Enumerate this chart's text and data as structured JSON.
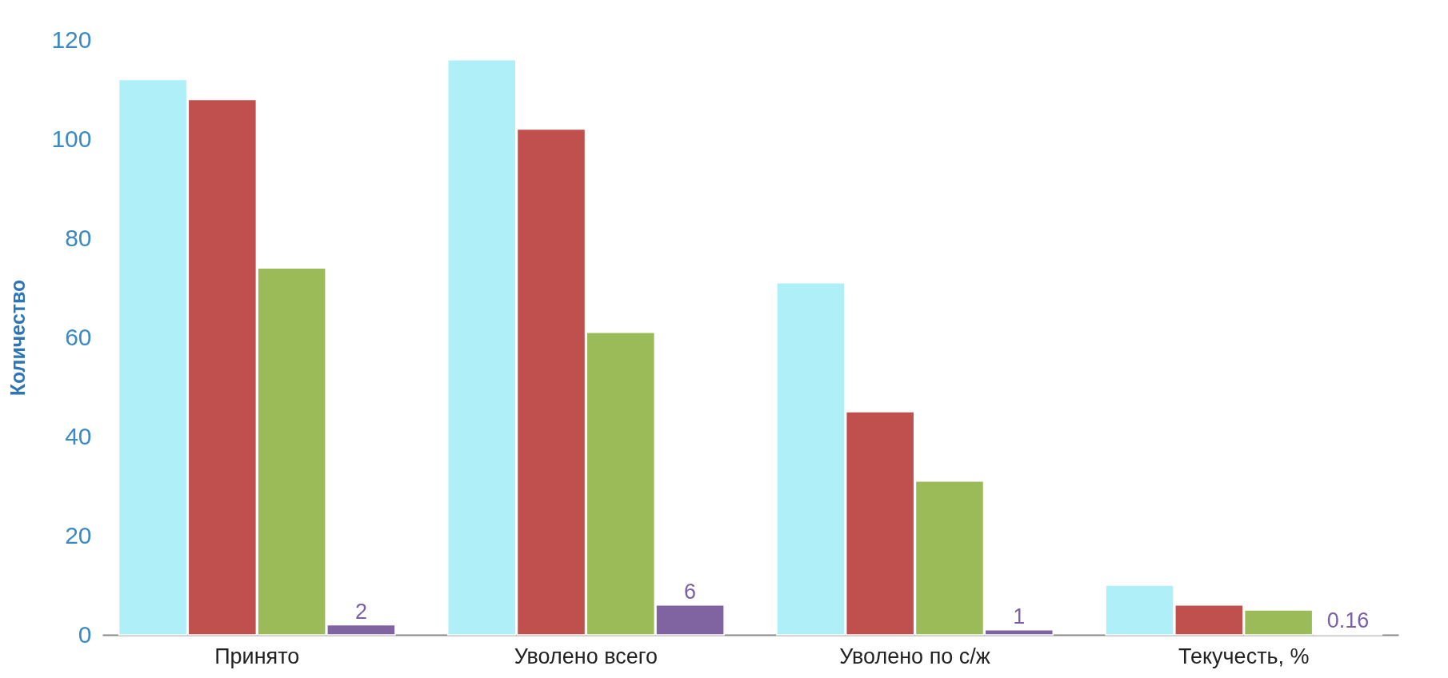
{
  "chart_data": {
    "type": "bar",
    "ylabel": "Количество",
    "categories": [
      "Принято",
      "Уволено всего",
      "Уволено по с/ж",
      "Текучесть, %"
    ],
    "series": [
      {
        "color": "#aeeff8",
        "values": [
          112,
          116,
          71,
          10
        ]
      },
      {
        "color": "#c0504d",
        "values": [
          108,
          102,
          45,
          6
        ]
      },
      {
        "color": "#9bbb59",
        "values": [
          74,
          61,
          31,
          5
        ]
      },
      {
        "color": "#8064a2",
        "values": [
          2,
          6,
          1,
          0.16
        ],
        "value_labels": [
          "2",
          "6",
          "1",
          "0.16"
        ]
      }
    ],
    "ylim": [
      0,
      120
    ],
    "yticks": [
      0,
      20,
      40,
      60,
      80,
      100,
      120
    ],
    "grid": false,
    "legend": false
  }
}
